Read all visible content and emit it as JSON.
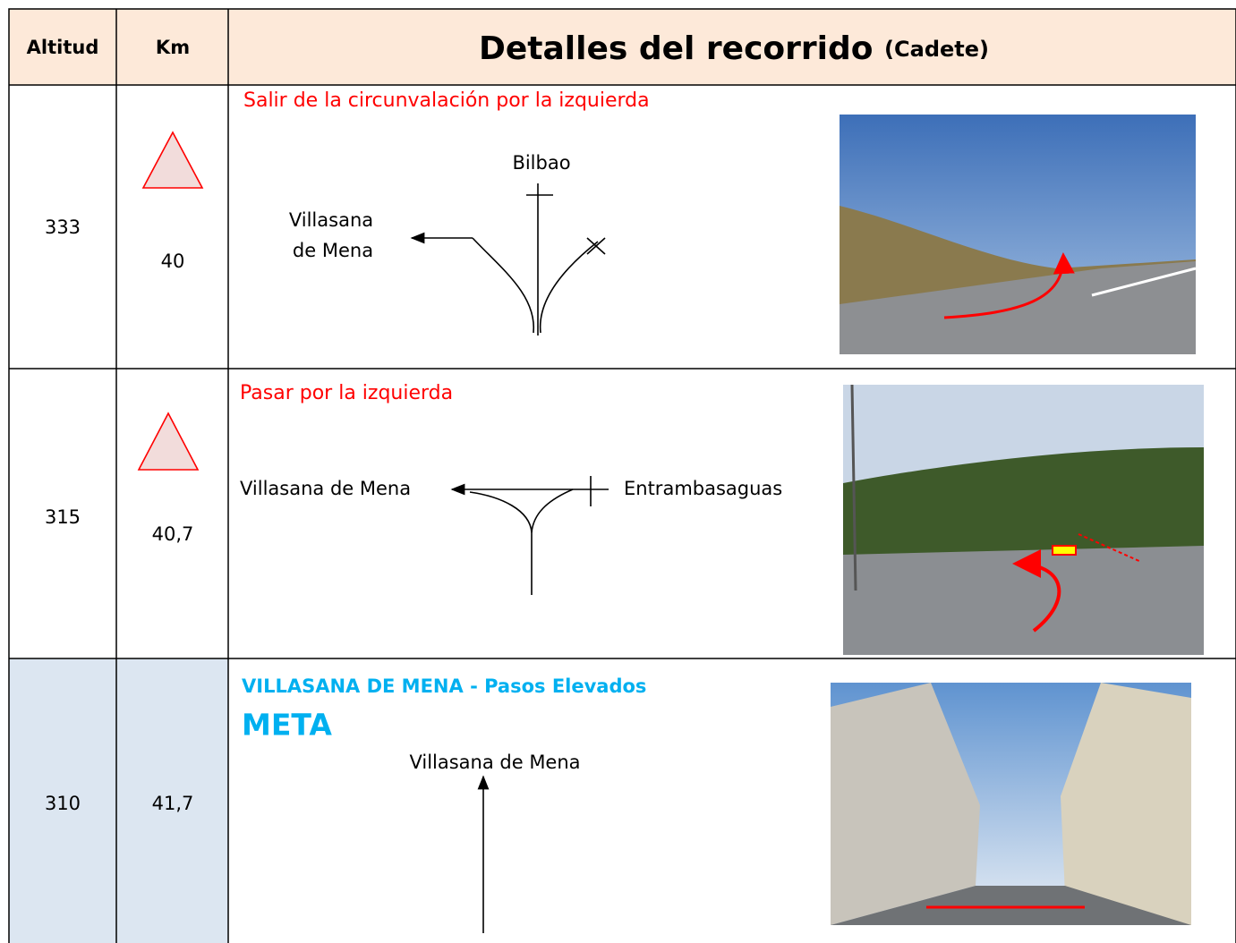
{
  "header": {
    "altitud": "Altitud",
    "km": "Km",
    "title": "Detalles del recorrido",
    "subtitle": "(Cadete)"
  },
  "rows": [
    {
      "altitud": "333",
      "km": "40",
      "instruction": "Salir de la circunvalación por la izquierda",
      "labels": [
        "Bilbao",
        "Villasana",
        "de Mena"
      ]
    },
    {
      "altitud": "315",
      "km": "40,7",
      "instruction": "Pasar por la izquierda",
      "labels": [
        "Villasana de Mena",
        "Entrambasaguas"
      ]
    },
    {
      "altitud": "310",
      "km": "41,7",
      "instruction": "VILLASANA DE MENA - Pasos Elevados",
      "headline": "META",
      "labels": [
        "Villasana de Mena"
      ]
    }
  ]
}
